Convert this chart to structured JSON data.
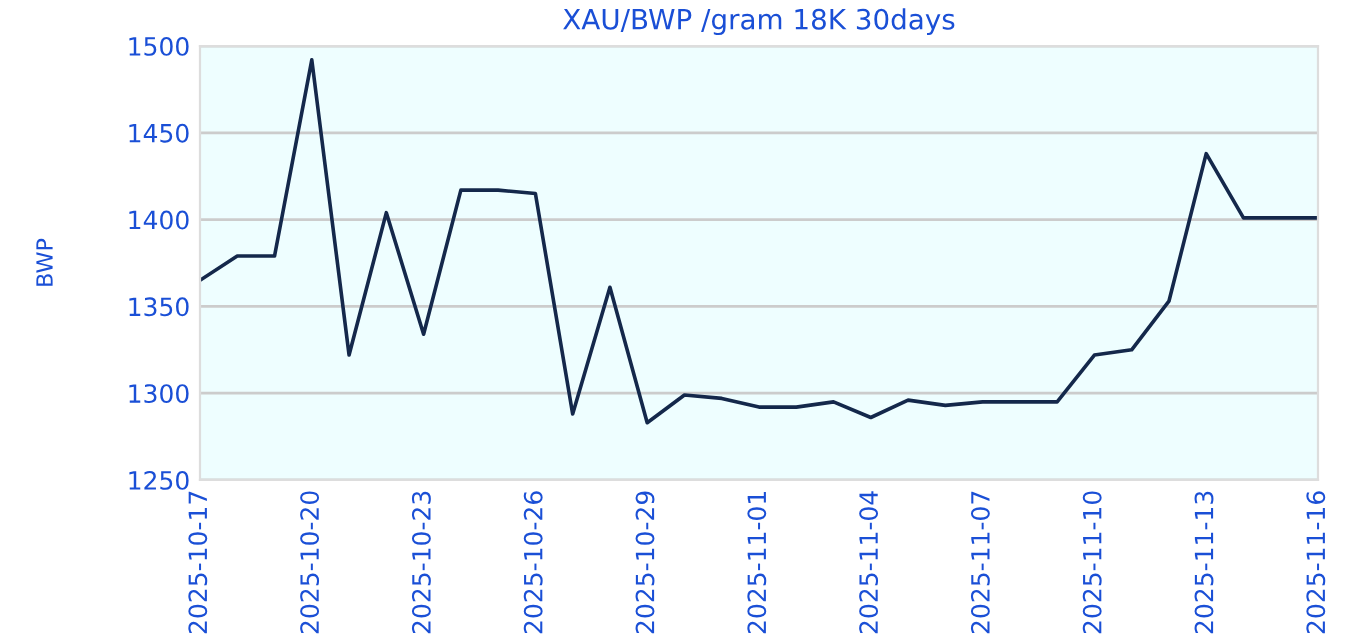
{
  "chart_data": {
    "type": "line",
    "title": "XAU/BWP /gram 18K 30days",
    "ylabel": "BWP",
    "x": [
      "2025-10-17",
      "2025-10-18",
      "2025-10-19",
      "2025-10-20",
      "2025-10-21",
      "2025-10-22",
      "2025-10-23",
      "2025-10-24",
      "2025-10-25",
      "2025-10-26",
      "2025-10-27",
      "2025-10-28",
      "2025-10-29",
      "2025-10-30",
      "2025-10-31",
      "2025-11-01",
      "2025-11-02",
      "2025-11-03",
      "2025-11-04",
      "2025-11-05",
      "2025-11-06",
      "2025-11-07",
      "2025-11-08",
      "2025-11-09",
      "2025-11-10",
      "2025-11-11",
      "2025-11-12",
      "2025-11-13",
      "2025-11-14",
      "2025-11-15",
      "2025-11-16"
    ],
    "series": [
      {
        "color": "#14284b",
        "values": [
          1365,
          1379,
          1379,
          1492,
          1322,
          1404,
          1334,
          1417,
          1417,
          1415,
          1288,
          1361,
          1283,
          1299,
          1297,
          1292,
          1292,
          1295,
          1286,
          1296,
          1293,
          1295,
          1295,
          1295,
          1322,
          1325,
          1353,
          1438,
          1401,
          1401,
          1401
        ]
      }
    ],
    "xlim": [
      "2025-10-17",
      "2025-11-16"
    ],
    "xticks": [
      "2025-10-17",
      "2025-10-20",
      "2025-10-23",
      "2025-10-26",
      "2025-10-29",
      "2025-11-01",
      "2025-11-04",
      "2025-11-07",
      "2025-11-10",
      "2025-11-13",
      "2025-11-16"
    ],
    "ylim": [
      1250,
      1500
    ],
    "yticks": [
      1250,
      1300,
      1350,
      1400,
      1450,
      1500
    ],
    "grid": "y",
    "marker": "none",
    "line_style": "solid",
    "legend": false
  }
}
